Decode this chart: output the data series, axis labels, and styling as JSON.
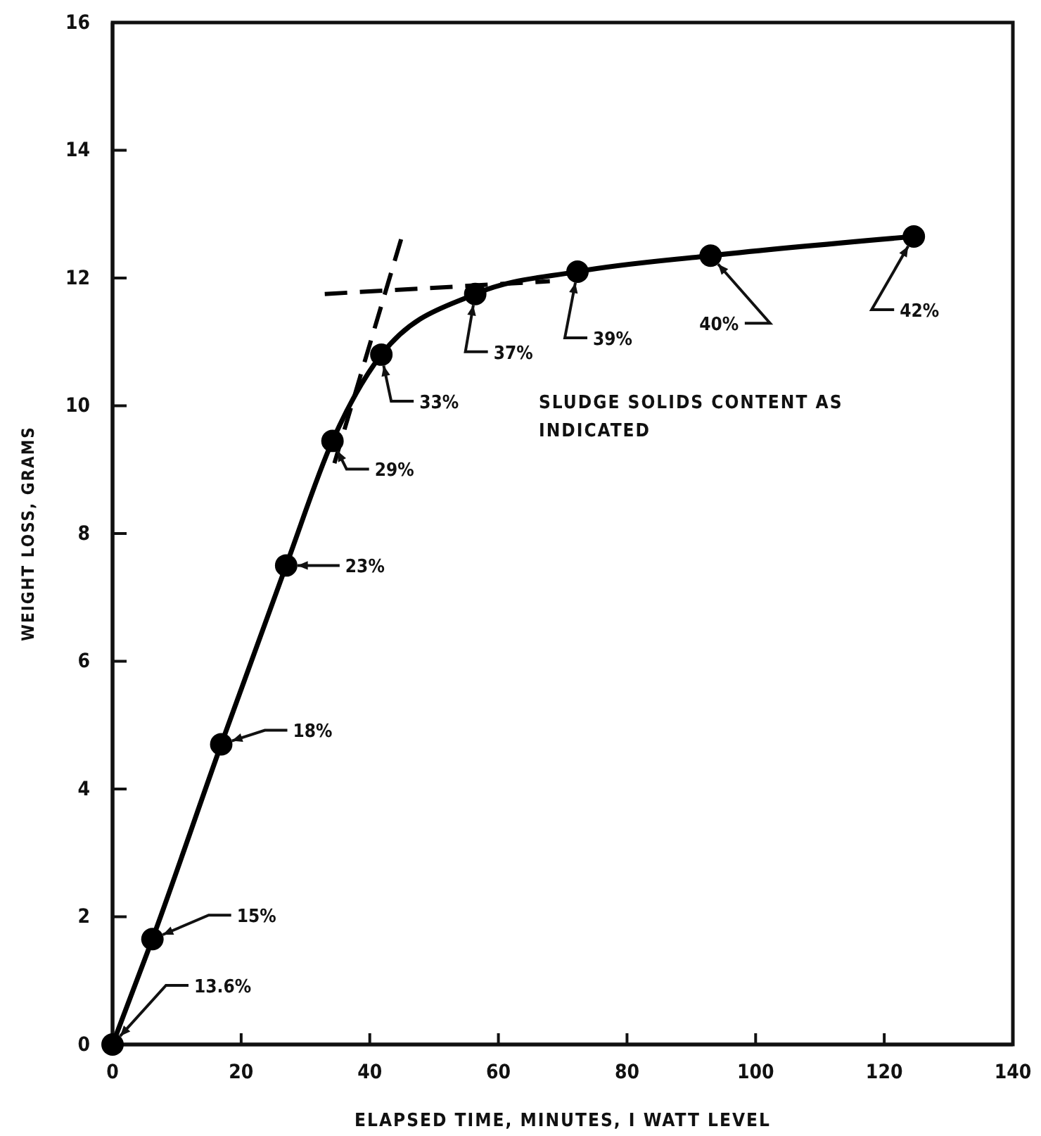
{
  "chart_data": {
    "type": "line",
    "xlabel": "ELAPSED TIME, MINUTES, I WATT LEVEL",
    "ylabel": "WEIGHT LOSS, GRAMS",
    "xlim": [
      0,
      140
    ],
    "xticks": [
      0,
      20,
      40,
      60,
      80,
      100,
      120,
      140
    ],
    "ylim": [
      0,
      16
    ],
    "yticks": [
      0,
      2,
      4,
      6,
      8,
      10,
      12,
      14,
      16
    ],
    "grid": false,
    "series": [
      {
        "color": "#000000",
        "marker": "circle",
        "line_style": "solid",
        "x": [
          0,
          6.2,
          16.9,
          27.0,
          34.2,
          41.8,
          56.4,
          72.3,
          93.0,
          124.6
        ],
        "values": [
          0,
          1.65,
          4.7,
          7.5,
          9.45,
          10.8,
          11.75,
          12.1,
          12.35,
          12.65
        ]
      },
      {
        "color": "#000000",
        "marker": "none",
        "line_style": "dashed",
        "x": [
          34.5,
          45
        ],
        "values": [
          9.1,
          12.65
        ]
      },
      {
        "color": "#000000",
        "marker": "none",
        "line_style": "dashed",
        "x": [
          33,
          68
        ],
        "values": [
          11.75,
          11.95
        ]
      }
    ],
    "annotations": [
      {
        "text": "13.6%",
        "x": 0,
        "y": 0
      },
      {
        "text": "15%",
        "x": 6.2,
        "y": 1.65
      },
      {
        "text": "18%",
        "x": 16.9,
        "y": 4.7
      },
      {
        "text": "23%",
        "x": 27.0,
        "y": 7.5
      },
      {
        "text": "29%",
        "x": 34.2,
        "y": 9.45
      },
      {
        "text": "33%",
        "x": 41.8,
        "y": 10.8
      },
      {
        "text": "37%",
        "x": 56.4,
        "y": 11.75
      },
      {
        "text": "39%",
        "x": 72.3,
        "y": 12.1
      },
      {
        "text": "40%",
        "x": 93.0,
        "y": 12.35
      },
      {
        "text": "42%",
        "x": 124.6,
        "y": 12.65
      },
      "SLUDGE SOLIDS CONTENT AS\nINDICATED"
    ]
  }
}
